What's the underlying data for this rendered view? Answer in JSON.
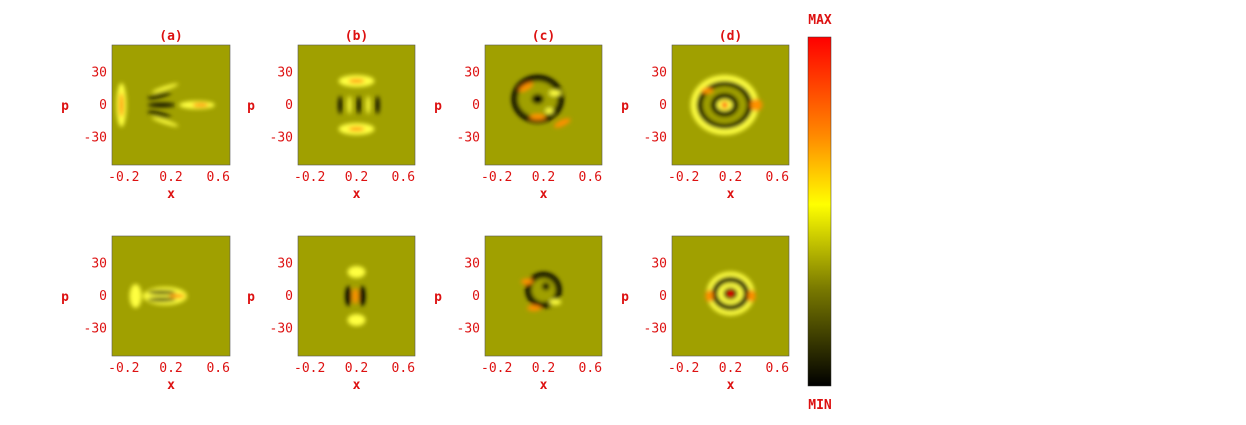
{
  "chart_data": {
    "type": "heatmap",
    "description_free": true,
    "panels": [
      {
        "title": "(a)",
        "row": 0,
        "col": 0,
        "xlabel": "x",
        "ylabel": "p",
        "xticks": [
          "-0.2",
          "0.2",
          "0.6"
        ],
        "yticks": [
          "30",
          "0",
          "-30"
        ],
        "xlim": [
          -0.3,
          0.7
        ],
        "ylim": [
          -55,
          55
        ]
      },
      {
        "title": "(b)",
        "row": 0,
        "col": 1,
        "xlabel": "x",
        "ylabel": "p",
        "xticks": [
          "-0.2",
          "0.2",
          "0.6"
        ],
        "yticks": [
          "30",
          "0",
          "-30"
        ],
        "xlim": [
          -0.3,
          0.7
        ],
        "ylim": [
          -55,
          55
        ]
      },
      {
        "title": "(c)",
        "row": 0,
        "col": 2,
        "xlabel": "x",
        "ylabel": "p",
        "xticks": [
          "-0.2",
          "0.2",
          "0.6"
        ],
        "yticks": [
          "30",
          "0",
          "-30"
        ],
        "xlim": [
          -0.3,
          0.7
        ],
        "ylim": [
          -55,
          55
        ]
      },
      {
        "title": "(d)",
        "row": 0,
        "col": 3,
        "xlabel": "x",
        "ylabel": "p",
        "xticks": [
          "-0.2",
          "0.2",
          "0.6"
        ],
        "yticks": [
          "30",
          "0",
          "-30"
        ],
        "xlim": [
          -0.3,
          0.7
        ],
        "ylim": [
          -55,
          55
        ]
      },
      {
        "title": "",
        "row": 1,
        "col": 0,
        "xlabel": "x",
        "ylabel": "p",
        "xticks": [
          "-0.2",
          "0.2",
          "0.6"
        ],
        "yticks": [
          "30",
          "0",
          "-30"
        ],
        "xlim": [
          -0.3,
          0.7
        ],
        "ylim": [
          -55,
          55
        ]
      },
      {
        "title": "",
        "row": 1,
        "col": 1,
        "xlabel": "x",
        "ylabel": "p",
        "xticks": [
          "-0.2",
          "0.2",
          "0.6"
        ],
        "yticks": [
          "30",
          "0",
          "-30"
        ],
        "xlim": [
          -0.3,
          0.7
        ],
        "ylim": [
          -55,
          55
        ]
      },
      {
        "title": "",
        "row": 1,
        "col": 2,
        "xlabel": "x",
        "ylabel": "p",
        "xticks": [
          "-0.2",
          "0.2",
          "0.6"
        ],
        "yticks": [
          "30",
          "0",
          "-30"
        ],
        "xlim": [
          -0.3,
          0.7
        ],
        "ylim": [
          -55,
          55
        ]
      },
      {
        "title": "",
        "row": 1,
        "col": 3,
        "xlabel": "x",
        "ylabel": "p",
        "xticks": [
          "-0.2",
          "0.2",
          "0.6"
        ],
        "yticks": [
          "30",
          "0",
          "-30"
        ],
        "xlim": [
          -0.3,
          0.7
        ],
        "ylim": [
          -55,
          55
        ]
      }
    ],
    "colorbar": {
      "max_label": "MAX",
      "min_label": "MIN",
      "colors": [
        "#ff0000",
        "#ff8000",
        "#ffff00",
        "#808000",
        "#000000"
      ]
    }
  },
  "colors": {
    "label": "#dd1111",
    "background": "#ffffff",
    "plot_bg": "#a0a000"
  }
}
